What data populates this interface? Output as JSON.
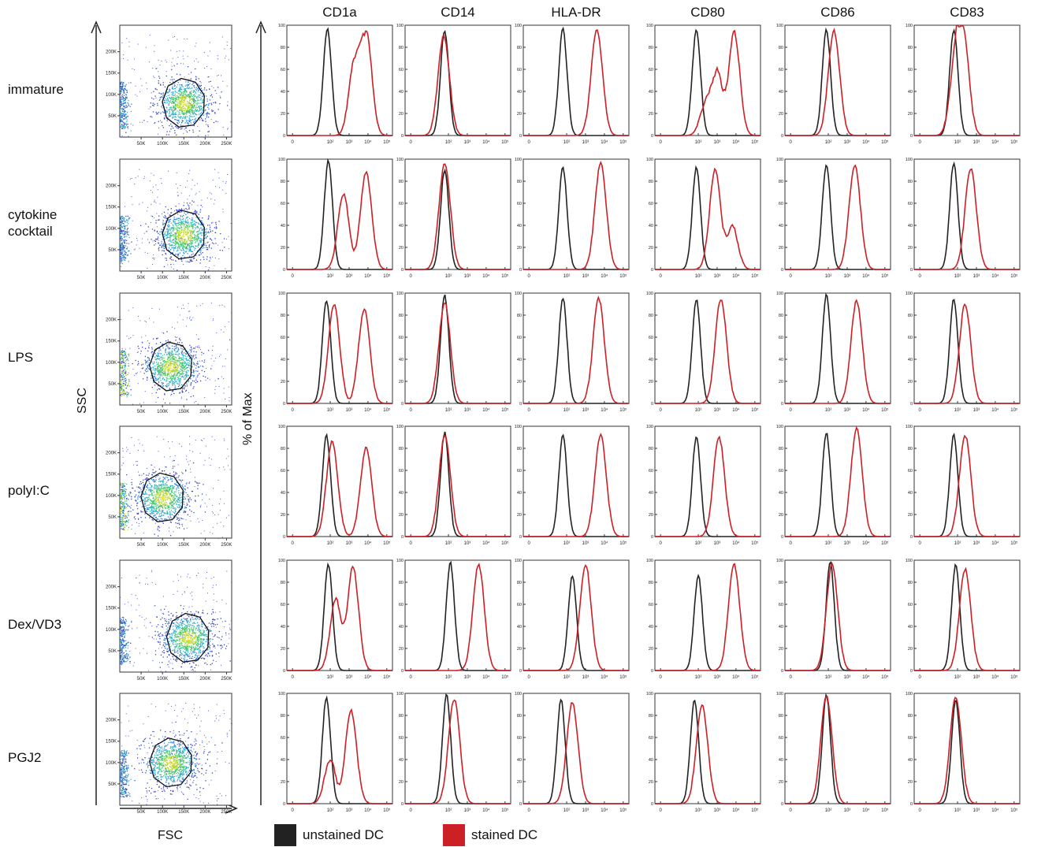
{
  "conditions": [
    "immature",
    "cytokine\ncocktail",
    "LPS",
    "polyI:C",
    "Dex/VD3",
    "PGJ2"
  ],
  "markers": [
    "CD1a",
    "CD14",
    "HLA-DR",
    "CD80",
    "CD86",
    "CD83"
  ],
  "axis_labels": {
    "ssc": "SSC",
    "fsc": "FSC",
    "pct_max": "% of Max"
  },
  "legend": {
    "unstained": {
      "label": "unstained DC",
      "color": "#222222"
    },
    "stained": {
      "label": "stained DC",
      "color": "#cc1f26"
    }
  },
  "scatter_axes": {
    "y_ticks": [
      "200K",
      "150K",
      "100K",
      "50K"
    ],
    "x_ticks": [
      "50K",
      "100K",
      "150K",
      "200K",
      "250K"
    ]
  },
  "histogram_axes": {
    "y_ticks": [
      "0",
      "20",
      "40",
      "60",
      "80",
      "100"
    ],
    "x_ticks": [
      "0",
      "10²",
      "10³",
      "10⁴",
      "10⁵"
    ]
  },
  "chart_data": {
    "type": "histogram-grid",
    "y_range": [
      0,
      100
    ],
    "x_scale": "log",
    "note": "peak = log10 fluorescence position of peak(s), height in % of Max",
    "rows": [
      {
        "condition": "immature",
        "scatter_center": [
          150000,
          80000
        ],
        "hist": [
          {
            "marker": "CD1a",
            "unstained": [
              [
                1.85,
                96
              ]
            ],
            "stained": [
              [
                3.9,
                96
              ],
              [
                3.3,
                70
              ]
            ]
          },
          {
            "marker": "CD14",
            "unstained": [
              [
                1.8,
                95
              ]
            ],
            "stained": [
              [
                1.75,
                90
              ]
            ]
          },
          {
            "marker": "HLA-DR",
            "unstained": [
              [
                1.8,
                96
              ]
            ],
            "stained": [
              [
                3.6,
                96
              ]
            ]
          },
          {
            "marker": "CD80",
            "unstained": [
              [
                1.9,
                96
              ]
            ],
            "stained": [
              [
                3.9,
                94
              ],
              [
                3.0,
                60
              ],
              [
                2.4,
                30
              ]
            ]
          },
          {
            "marker": "CD86",
            "unstained": [
              [
                1.9,
                96
              ]
            ],
            "stained": [
              [
                2.3,
                95
              ]
            ]
          },
          {
            "marker": "CD83",
            "unstained": [
              [
                1.8,
                96
              ]
            ],
            "stained": [
              [
                2.3,
                95
              ],
              [
                1.9,
                70
              ]
            ]
          }
        ]
      },
      {
        "condition": "cytokine cocktail",
        "scatter_center": [
          150000,
          85000
        ],
        "hist": [
          {
            "marker": "CD1a",
            "unstained": [
              [
                1.9,
                98
              ]
            ],
            "stained": [
              [
                2.7,
                68
              ],
              [
                3.9,
                88
              ]
            ]
          },
          {
            "marker": "CD14",
            "unstained": [
              [
                1.8,
                90
              ]
            ],
            "stained": [
              [
                1.8,
                96
              ]
            ]
          },
          {
            "marker": "HLA-DR",
            "unstained": [
              [
                1.8,
                92
              ]
            ],
            "stained": [
              [
                3.8,
                96
              ]
            ]
          },
          {
            "marker": "CD80",
            "unstained": [
              [
                1.9,
                92
              ]
            ],
            "stained": [
              [
                2.9,
                90
              ],
              [
                3.8,
                40
              ]
            ]
          },
          {
            "marker": "CD86",
            "unstained": [
              [
                1.9,
                96
              ]
            ],
            "stained": [
              [
                3.4,
                95
              ]
            ]
          },
          {
            "marker": "CD83",
            "unstained": [
              [
                1.8,
                96
              ]
            ],
            "stained": [
              [
                2.7,
                92
              ]
            ]
          }
        ]
      },
      {
        "condition": "LPS",
        "scatter_center": [
          120000,
          90000
        ],
        "hist": [
          {
            "marker": "CD1a",
            "unstained": [
              [
                1.8,
                94
              ]
            ],
            "stained": [
              [
                2.2,
                90
              ],
              [
                3.8,
                85
              ]
            ]
          },
          {
            "marker": "CD14",
            "unstained": [
              [
                1.8,
                98
              ]
            ],
            "stained": [
              [
                1.8,
                92
              ]
            ]
          },
          {
            "marker": "HLA-DR",
            "unstained": [
              [
                1.8,
                96
              ]
            ],
            "stained": [
              [
                3.7,
                95
              ]
            ]
          },
          {
            "marker": "CD80",
            "unstained": [
              [
                1.9,
                94
              ]
            ],
            "stained": [
              [
                3.2,
                95
              ]
            ]
          },
          {
            "marker": "CD86",
            "unstained": [
              [
                1.9,
                98
              ]
            ],
            "stained": [
              [
                3.5,
                93
              ]
            ]
          },
          {
            "marker": "CD83",
            "unstained": [
              [
                1.8,
                94
              ]
            ],
            "stained": [
              [
                2.4,
                90
              ]
            ]
          }
        ]
      },
      {
        "condition": "polyI:C",
        "scatter_center": [
          100000,
          95000
        ],
        "hist": [
          {
            "marker": "CD1a",
            "unstained": [
              [
                1.8,
                92
              ]
            ],
            "stained": [
              [
                2.1,
                86
              ],
              [
                3.9,
                80
              ]
            ]
          },
          {
            "marker": "CD14",
            "unstained": [
              [
                1.8,
                94
              ]
            ],
            "stained": [
              [
                1.8,
                92
              ]
            ]
          },
          {
            "marker": "HLA-DR",
            "unstained": [
              [
                1.8,
                92
              ]
            ],
            "stained": [
              [
                3.8,
                92
              ]
            ]
          },
          {
            "marker": "CD80",
            "unstained": [
              [
                1.9,
                90
              ]
            ],
            "stained": [
              [
                3.1,
                90
              ]
            ]
          },
          {
            "marker": "CD86",
            "unstained": [
              [
                1.9,
                94
              ]
            ],
            "stained": [
              [
                3.5,
                98
              ]
            ]
          },
          {
            "marker": "CD83",
            "unstained": [
              [
                1.8,
                92
              ]
            ],
            "stained": [
              [
                2.4,
                92
              ]
            ]
          }
        ]
      },
      {
        "condition": "Dex/VD3",
        "scatter_center": [
          160000,
          80000
        ],
        "hist": [
          {
            "marker": "CD1a",
            "unstained": [
              [
                1.9,
                96
              ]
            ],
            "stained": [
              [
                2.3,
                65
              ],
              [
                3.2,
                94
              ]
            ]
          },
          {
            "marker": "CD14",
            "unstained": [
              [
                2.1,
                98
              ]
            ],
            "stained": [
              [
                3.6,
                96
              ]
            ]
          },
          {
            "marker": "HLA-DR",
            "unstained": [
              [
                2.3,
                86
              ]
            ],
            "stained": [
              [
                3.0,
                96
              ]
            ]
          },
          {
            "marker": "CD80",
            "unstained": [
              [
                2.0,
                86
              ]
            ],
            "stained": [
              [
                3.9,
                96
              ]
            ]
          },
          {
            "marker": "CD86",
            "unstained": [
              [
                2.1,
                98
              ]
            ],
            "stained": [
              [
                2.2,
                96
              ]
            ]
          },
          {
            "marker": "CD83",
            "unstained": [
              [
                1.9,
                96
              ]
            ],
            "stained": [
              [
                2.4,
                92
              ]
            ]
          }
        ]
      },
      {
        "condition": "PGJ2",
        "scatter_center": [
          120000,
          100000
        ],
        "hist": [
          {
            "marker": "CD1a",
            "unstained": [
              [
                1.8,
                96
              ]
            ],
            "stained": [
              [
                3.1,
                84
              ],
              [
                2.0,
                40
              ]
            ]
          },
          {
            "marker": "CD14",
            "unstained": [
              [
                1.9,
                98
              ]
            ],
            "stained": [
              [
                2.3,
                95
              ]
            ]
          },
          {
            "marker": "HLA-DR",
            "unstained": [
              [
                1.7,
                94
              ]
            ],
            "stained": [
              [
                2.3,
                92
              ]
            ]
          },
          {
            "marker": "CD80",
            "unstained": [
              [
                1.8,
                94
              ]
            ],
            "stained": [
              [
                2.2,
                90
              ]
            ]
          },
          {
            "marker": "CD86",
            "unstained": [
              [
                1.9,
                98
              ]
            ],
            "stained": [
              [
                1.9,
                98
              ]
            ]
          },
          {
            "marker": "CD83",
            "unstained": [
              [
                1.9,
                94
              ]
            ],
            "stained": [
              [
                1.9,
                96
              ]
            ]
          }
        ]
      }
    ]
  }
}
